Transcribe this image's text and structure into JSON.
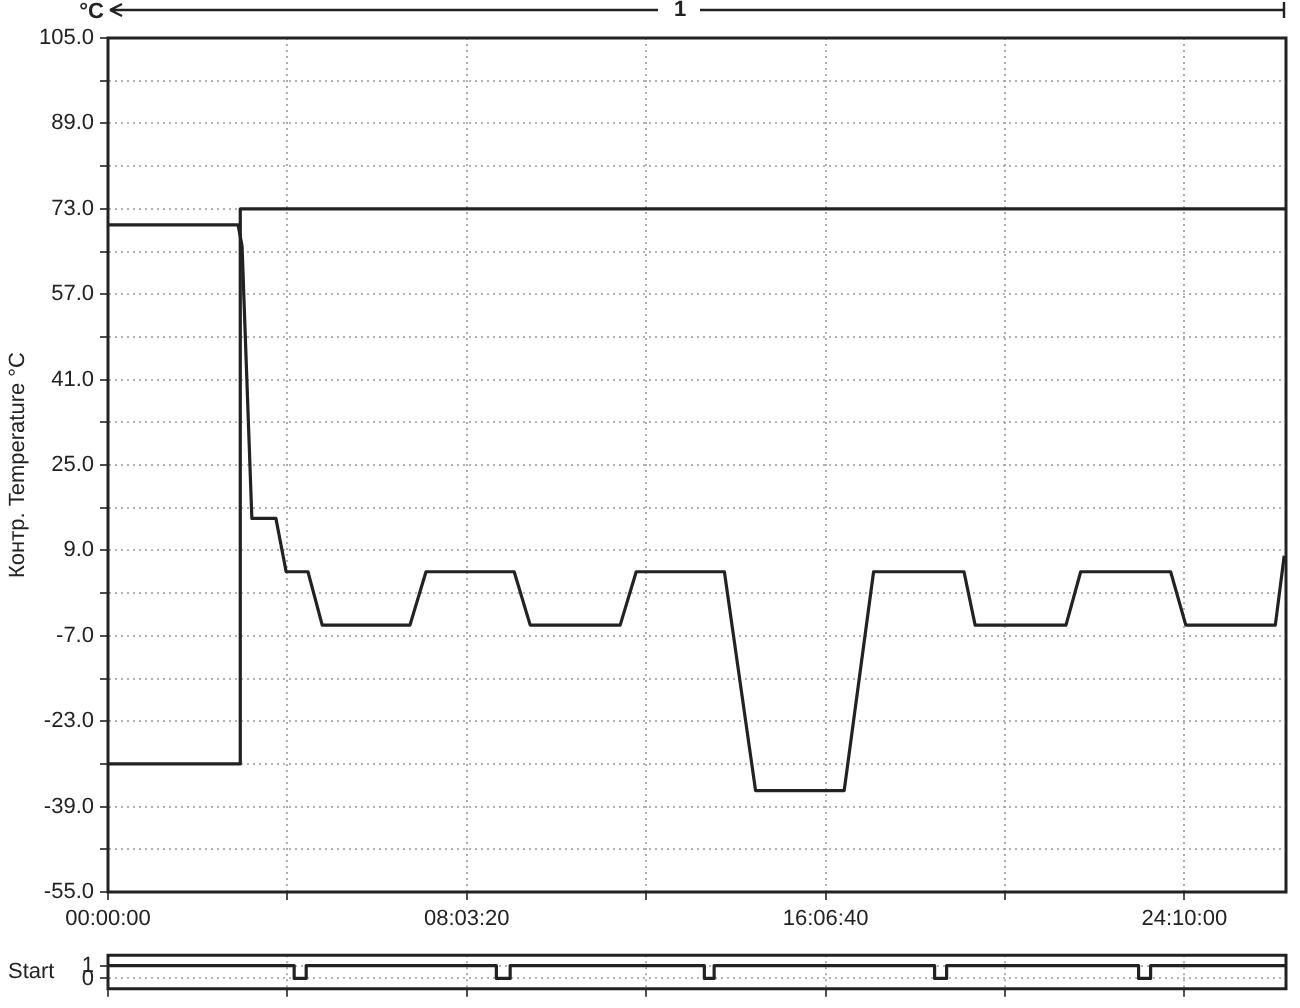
{
  "chart_data": [
    {
      "type": "line",
      "ylabel": "Контр. Temperature °C",
      "annotations": [
        "°C",
        "1"
      ],
      "xlim": [
        0,
        26.45
      ],
      "ylim": [
        -55,
        105
      ],
      "xticks": [
        {
          "value": 0,
          "label": "00:00:00"
        },
        {
          "value": 4.0278,
          "label": null
        },
        {
          "value": 8.0556,
          "label": "08:03:20"
        },
        {
          "value": 12.0833,
          "label": null
        },
        {
          "value": 16.1111,
          "label": "16:06:40"
        },
        {
          "value": 20.1389,
          "label": null
        },
        {
          "value": 24.1667,
          "label": "24:10:00"
        }
      ],
      "yticks": [
        {
          "value": -55,
          "label": "-55.0"
        },
        {
          "value": -47,
          "label": null
        },
        {
          "value": -39,
          "label": "-39.0"
        },
        {
          "value": -31,
          "label": null
        },
        {
          "value": -23,
          "label": "-23.0"
        },
        {
          "value": -15,
          "label": null
        },
        {
          "value": -7,
          "label": "-7.0"
        },
        {
          "value": 1,
          "label": null
        },
        {
          "value": 9,
          "label": "9.0"
        },
        {
          "value": 17,
          "label": null
        },
        {
          "value": 25,
          "label": "25.0"
        },
        {
          "value": 33,
          "label": null
        },
        {
          "value": 41,
          "label": "41.0"
        },
        {
          "value": 49,
          "label": null
        },
        {
          "value": 57,
          "label": "57.0"
        },
        {
          "value": 65,
          "label": null
        },
        {
          "value": 73,
          "label": "73.0"
        },
        {
          "value": 81,
          "label": null
        },
        {
          "value": 89,
          "label": "89.0"
        },
        {
          "value": 97,
          "label": null
        },
        {
          "value": 105,
          "label": "105.0"
        }
      ],
      "grid": true,
      "series": [
        {
          "color": "#222222",
          "x": [
            0,
            2.97,
            2.97,
            26.45
          ],
          "values": [
            -31,
            -31,
            73,
            73
          ]
        },
        {
          "color": "#222222",
          "x": [
            0,
            2.92,
            3.01,
            3.23,
            3.77,
            4.0,
            4.49,
            4.81,
            6.78,
            7.14,
            9.12,
            9.48,
            11.5,
            11.86,
            13.84,
            14.54,
            16.53,
            17.19,
            19.22,
            19.47,
            21.51,
            21.84,
            23.86,
            24.2,
            26.21,
            26.41
          ],
          "values": [
            70,
            70,
            66,
            15,
            15,
            5,
            5,
            -5,
            -5,
            5,
            5,
            -5,
            -5,
            5,
            5,
            -36,
            -36,
            5,
            5,
            -5,
            -5,
            5,
            5,
            -5,
            -5,
            8
          ]
        }
      ]
    },
    {
      "type": "step",
      "ylabel": "Start",
      "tick_labels": "y",
      "xlim": [
        0,
        26.45
      ],
      "ylim": [
        -0.8,
        1.8
      ],
      "xticks": [
        {
          "value": 0,
          "label": null
        },
        {
          "value": 4.0278,
          "label": null
        },
        {
          "value": 8.0556,
          "label": null
        },
        {
          "value": 12.0833,
          "label": null
        },
        {
          "value": 16.1111,
          "label": null
        },
        {
          "value": 20.1389,
          "label": null
        },
        {
          "value": 24.1667,
          "label": null
        }
      ],
      "yticks": [
        0,
        1
      ],
      "grid": true,
      "series": [
        {
          "color": "#222222",
          "x": [
            0,
            4.18,
            4.45,
            8.72,
            9.03,
            13.39,
            13.61,
            18.56,
            18.83,
            23.14,
            23.41,
            26.45
          ],
          "values": [
            1,
            0,
            1,
            0,
            1,
            0,
            1,
            0,
            1,
            0,
            1,
            1
          ]
        }
      ]
    }
  ]
}
